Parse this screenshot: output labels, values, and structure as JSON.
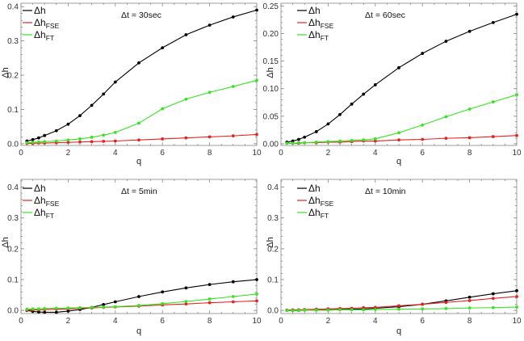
{
  "colors": {
    "black": "#000000",
    "red": "#e8211f",
    "green": "#33e61f"
  },
  "chart_data": [
    {
      "type": "line",
      "annotation": "Δt = 30sec",
      "xlabel": "q",
      "ylabel": "Δh",
      "xlim": [
        0,
        10
      ],
      "ylim": [
        -0.005,
        0.41
      ],
      "xticks": [
        "0",
        "2",
        "4",
        "6",
        "8",
        "10"
      ],
      "yticks": [
        "0.0",
        "0.1",
        "0.2",
        "0.3",
        "0.4"
      ],
      "ytick_values": [
        0,
        0.1,
        0.2,
        0.3,
        0.4
      ],
      "legend_position": "top-left",
      "x": [
        0.25,
        0.5,
        0.75,
        1,
        1.5,
        2,
        2.5,
        3,
        3.5,
        4,
        5,
        6,
        7,
        8,
        9,
        10
      ],
      "series": [
        {
          "name": "Δh",
          "sub": "",
          "color": "#000000",
          "values": [
            0.008,
            0.012,
            0.017,
            0.024,
            0.038,
            0.057,
            0.082,
            0.112,
            0.145,
            0.18,
            0.236,
            0.28,
            0.318,
            0.346,
            0.37,
            0.39
          ]
        },
        {
          "name": "Δh",
          "sub": "FSE",
          "color": "#e8211f",
          "values": [
            0.001,
            0.001,
            0.002,
            0.002,
            0.003,
            0.004,
            0.005,
            0.006,
            0.007,
            0.008,
            0.011,
            0.014,
            0.017,
            0.02,
            0.023,
            0.027
          ]
        },
        {
          "name": "Δh",
          "sub": "FT",
          "color": "#33e61f",
          "values": [
            0.003,
            0.004,
            0.005,
            0.006,
            0.008,
            0.011,
            0.014,
            0.019,
            0.025,
            0.033,
            0.06,
            0.102,
            0.13,
            0.15,
            0.167,
            0.185
          ]
        }
      ]
    },
    {
      "type": "line",
      "annotation": "Δt = 60sec",
      "xlabel": "q",
      "ylabel": "Δh",
      "xlim": [
        0,
        10
      ],
      "ylim": [
        -0.003,
        0.255
      ],
      "xticks": [
        "0",
        "2",
        "4",
        "6",
        "8",
        "10"
      ],
      "yticks": [
        "0.00",
        "0.05",
        "0.10",
        "0.15",
        "0.20",
        "0.25"
      ],
      "ytick_values": [
        0,
        0.05,
        0.1,
        0.15,
        0.2,
        0.25
      ],
      "legend_position": "top-left",
      "x": [
        0.25,
        0.5,
        0.75,
        1,
        1.5,
        2,
        2.5,
        3,
        3.5,
        4,
        5,
        6,
        7,
        8,
        9,
        10
      ],
      "series": [
        {
          "name": "Δh",
          "sub": "",
          "color": "#000000",
          "values": [
            0.003,
            0.005,
            0.008,
            0.012,
            0.022,
            0.036,
            0.053,
            0.072,
            0.09,
            0.107,
            0.138,
            0.164,
            0.186,
            0.204,
            0.22,
            0.235
          ]
        },
        {
          "name": "Δh",
          "sub": "FSE",
          "color": "#e8211f",
          "values": [
            0.001,
            0.001,
            0.001,
            0.002,
            0.002,
            0.003,
            0.003,
            0.004,
            0.005,
            0.005,
            0.007,
            0.008,
            0.01,
            0.011,
            0.013,
            0.015
          ]
        },
        {
          "name": "Δh",
          "sub": "FT",
          "color": "#33e61f",
          "values": [
            0.001,
            0.001,
            0.002,
            0.002,
            0.003,
            0.004,
            0.005,
            0.006,
            0.007,
            0.009,
            0.02,
            0.034,
            0.049,
            0.063,
            0.076,
            0.089
          ]
        }
      ]
    },
    {
      "type": "line",
      "annotation": "Δt = 5min",
      "xlabel": "q",
      "ylabel": "Δh",
      "xlim": [
        0,
        10
      ],
      "ylim": [
        -0.01,
        0.425
      ],
      "xticks": [
        "0",
        "2",
        "4",
        "6",
        "8",
        "10"
      ],
      "yticks": [
        "0.0",
        "0.1",
        "0.2",
        "0.3",
        "0.4"
      ],
      "ytick_values": [
        0,
        0.1,
        0.2,
        0.3,
        0.4
      ],
      "legend_position": "top-left",
      "x": [
        0.25,
        0.5,
        0.75,
        1,
        1.5,
        2,
        2.5,
        3,
        3.5,
        4,
        5,
        6,
        7,
        8,
        9,
        10
      ],
      "series": [
        {
          "name": "Δh",
          "sub": "",
          "color": "#000000",
          "values": [
            0.0,
            -0.003,
            -0.005,
            -0.006,
            -0.006,
            -0.002,
            0.003,
            0.01,
            0.019,
            0.028,
            0.045,
            0.06,
            0.073,
            0.084,
            0.093,
            0.1
          ]
        },
        {
          "name": "Δh",
          "sub": "FSE",
          "color": "#e8211f",
          "values": [
            0.001,
            0.002,
            0.002,
            0.003,
            0.004,
            0.005,
            0.007,
            0.008,
            0.01,
            0.011,
            0.014,
            0.018,
            0.021,
            0.025,
            0.028,
            0.031
          ]
        },
        {
          "name": "Δh",
          "sub": "FT",
          "color": "#33e61f",
          "values": [
            0.004,
            0.005,
            0.005,
            0.006,
            0.007,
            0.008,
            0.009,
            0.01,
            0.011,
            0.012,
            0.016,
            0.022,
            0.029,
            0.037,
            0.045,
            0.053
          ]
        }
      ]
    },
    {
      "type": "line",
      "annotation": "Δt = 10min",
      "xlabel": "q",
      "ylabel": "Δh",
      "xlim": [
        0,
        10
      ],
      "ylim": [
        -0.01,
        0.425
      ],
      "xticks": [
        "0",
        "2",
        "4",
        "6",
        "8",
        "10"
      ],
      "yticks": [
        "0.0",
        "0.1",
        "0.2",
        "0.3",
        "0.4"
      ],
      "ytick_values": [
        0,
        0.1,
        0.2,
        0.3,
        0.4
      ],
      "legend_position": "top-left",
      "x": [
        0.25,
        0.5,
        0.75,
        1,
        1.5,
        2,
        2.5,
        3,
        3.5,
        4,
        5,
        6,
        7,
        8,
        9,
        10
      ],
      "series": [
        {
          "name": "Δh",
          "sub": "",
          "color": "#000000",
          "values": [
            0.0,
            0.0,
            0.0,
            0.001,
            0.001,
            0.002,
            0.003,
            0.004,
            0.005,
            0.007,
            0.012,
            0.02,
            0.031,
            0.043,
            0.054,
            0.064
          ]
        },
        {
          "name": "Δh",
          "sub": "FSE",
          "color": "#e8211f",
          "values": [
            0.001,
            0.002,
            0.002,
            0.003,
            0.004,
            0.005,
            0.006,
            0.007,
            0.009,
            0.01,
            0.015,
            0.02,
            0.026,
            0.032,
            0.039,
            0.045
          ]
        },
        {
          "name": "Δh",
          "sub": "FT",
          "color": "#33e61f",
          "values": [
            0.0,
            0.0,
            0.0,
            0.001,
            0.001,
            0.001,
            0.002,
            0.002,
            0.002,
            0.003,
            0.004,
            0.005,
            0.006,
            0.008,
            0.009,
            0.011
          ]
        }
      ]
    }
  ]
}
